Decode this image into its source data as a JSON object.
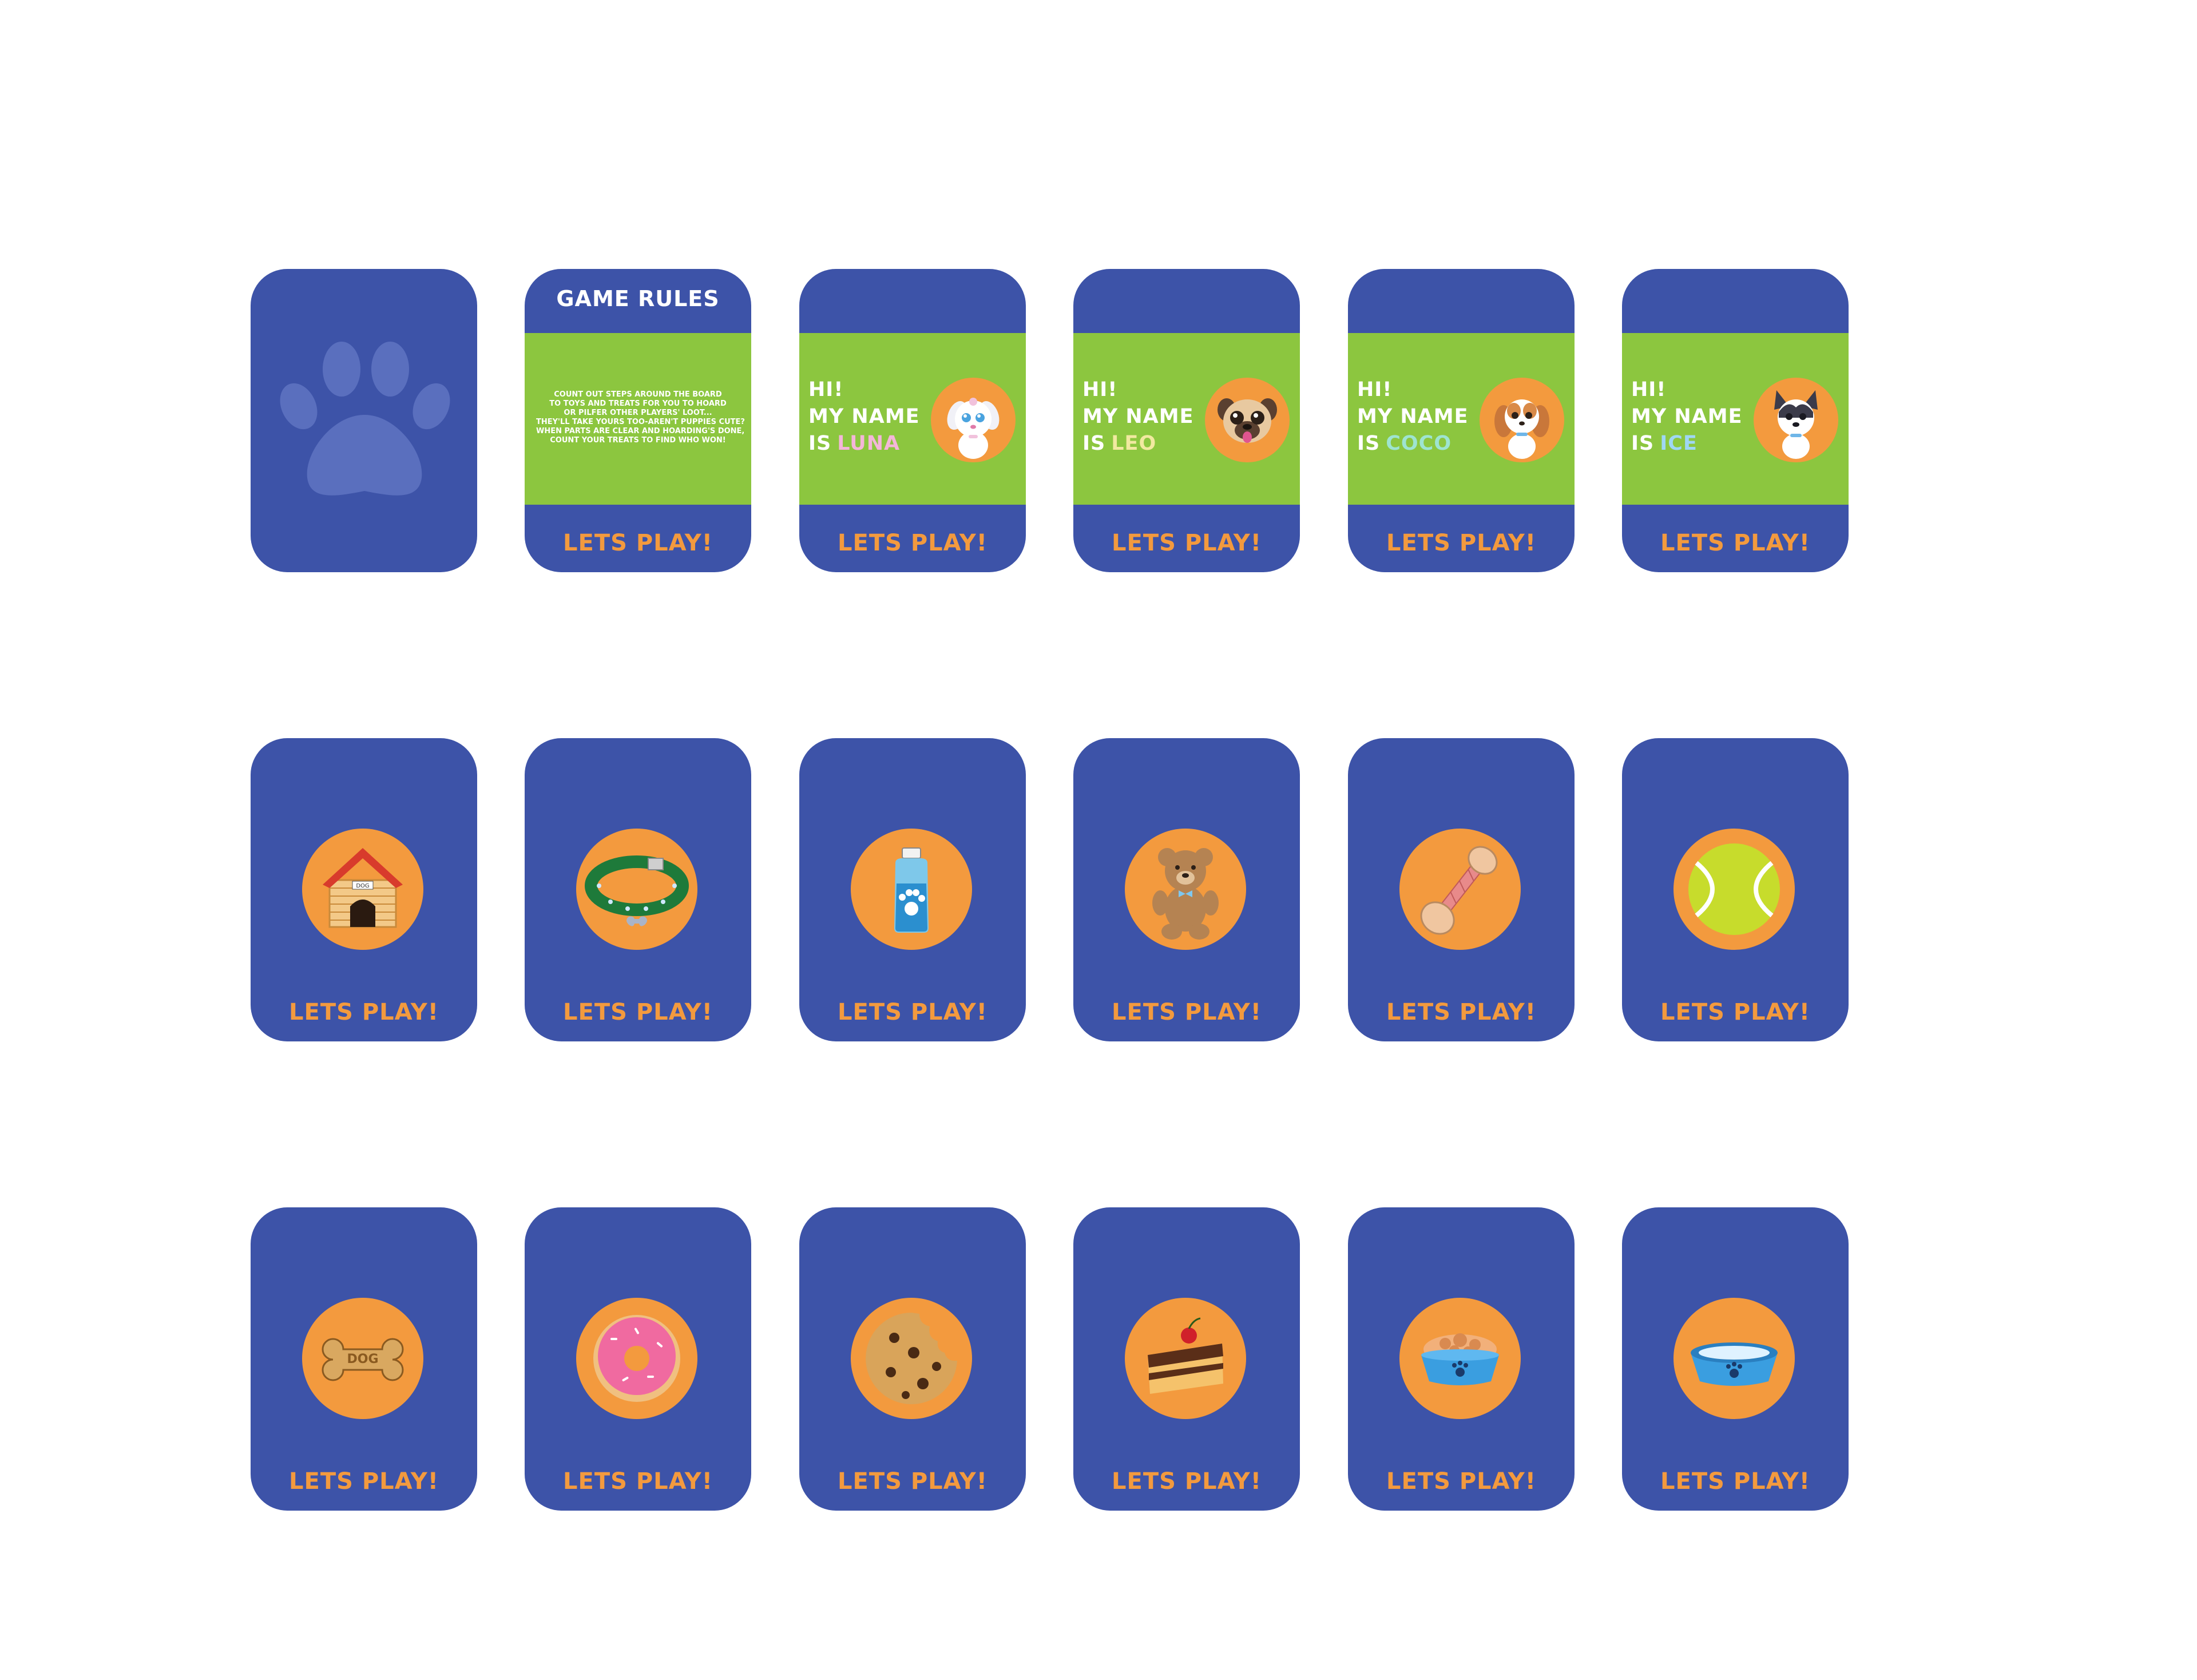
{
  "colors": {
    "card": "#3d53a8",
    "band": "#8cc63f",
    "accent": "#f39a3e",
    "luna": "#f4b6d9",
    "leo": "#f1e9a0",
    "coco": "#9ee4d0",
    "ice": "#9fd7f4"
  },
  "cta": "LETS PLAY!",
  "back": {
    "icon": "paw-print-icon"
  },
  "rules": {
    "title": "GAME RULES",
    "lines": [
      "COUNT OUT STEPS AROUND THE BOARD",
      "TO TOYS AND TREATS FOR YOU TO HOARD",
      "OR PILFER OTHER PLAYERS' LOOT...",
      "THEY'LL TAKE YOURS TOO-AREN'T PUPPIES CUTE?",
      "WHEN PARTS ARE CLEAR AND HOARDING'S DONE,",
      "COUNT YOUR TREATS TO FIND WHO WON!"
    ]
  },
  "puppies": [
    {
      "hi": "HI!",
      "line2": "MY NAME",
      "is": "IS",
      "name": "LUNA",
      "icon": "white-puppy-icon"
    },
    {
      "hi": "HI!",
      "line2": "MY NAME",
      "is": "IS",
      "name": "LEO",
      "icon": "pug-puppy-icon"
    },
    {
      "hi": "HI!",
      "line2": "MY NAME",
      "is": "IS",
      "name": "COCO",
      "icon": "spaniel-puppy-icon"
    },
    {
      "hi": "HI!",
      "line2": "MY NAME",
      "is": "IS",
      "name": "ICE",
      "icon": "bulldog-puppy-icon"
    }
  ],
  "items_row2": [
    "dog-house-icon",
    "collar-icon",
    "shampoo-bottle-icon",
    "teddy-bear-icon",
    "rope-toy-icon",
    "tennis-ball-icon"
  ],
  "items_row3": [
    "dog-biscuit-icon",
    "donut-icon",
    "cookie-icon",
    "cake-slice-icon",
    "food-bowl-icon",
    "water-bowl-icon"
  ],
  "dog_house_sign": "DOG",
  "biscuit_text": "DOG"
}
